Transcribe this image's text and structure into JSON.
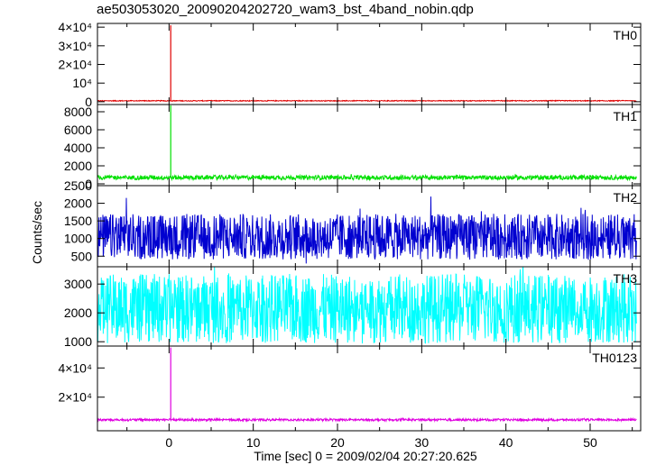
{
  "chart_data": {
    "type": "line",
    "title": "ae503053020_20090204202720_wam3_bst_4band_nobin.qdp",
    "xlabel": "Time [sec] 0 = 2009/02/04 20:27:20.625",
    "ylabel": "Counts/sec",
    "xlim": [
      -8.5,
      56
    ],
    "x_ticks": [
      0,
      10,
      20,
      30,
      40,
      50
    ],
    "x_tick_labels": [
      "0",
      "10",
      "20",
      "30",
      "40",
      "50"
    ],
    "grid": false,
    "series": [
      {
        "name": "TH0",
        "color": "#e00000",
        "ylim": [
          -1500,
          42000
        ],
        "y_ticks": [
          0,
          10000,
          20000,
          30000,
          40000
        ],
        "y_tick_labels": [
          "0",
          "10⁴",
          "2×10⁴",
          "3×10⁴",
          "4×10⁴"
        ],
        "baseline": 500,
        "noise": 450,
        "spike": {
          "x": 0.2,
          "y": 41000
        },
        "x_start": -8.5,
        "x_end": 55.5
      },
      {
        "name": "TH1",
        "color": "#00e000",
        "ylim": [
          -200,
          8800
        ],
        "y_ticks": [
          0,
          2000,
          4000,
          6000,
          8000
        ],
        "y_tick_labels": [
          "0",
          "2000",
          "4000",
          "6000",
          "8000"
        ],
        "baseline": 700,
        "noise": 500,
        "spike": {
          "x": 0.2,
          "y": 8700
        },
        "x_start": -8.5,
        "x_end": 55.5
      },
      {
        "name": "TH2",
        "color": "#0000d0",
        "ylim": [
          200,
          2500
        ],
        "y_ticks": [
          500,
          1000,
          1500,
          2000,
          2500
        ],
        "y_tick_labels": [
          "500",
          "1000",
          "1500",
          "2000",
          "2500"
        ],
        "baseline": 1050,
        "noise": 1300,
        "spike": null,
        "x_start": -8.5,
        "x_end": 55.5
      },
      {
        "name": "TH3",
        "color": "#00ffff",
        "ylim": [
          850,
          3600
        ],
        "y_ticks": [
          1000,
          2000,
          3000
        ],
        "y_tick_labels": [
          "1000",
          "2000",
          "3000"
        ],
        "baseline": 2150,
        "noise": 2400,
        "spike": null,
        "x_start": -8.5,
        "x_end": 55.5
      },
      {
        "name": "TH0123",
        "color": "#e000e0",
        "ylim": [
          -3000,
          55000
        ],
        "y_ticks": [
          20000,
          40000
        ],
        "y_tick_labels": [
          "2×10⁴",
          "4×10⁴"
        ],
        "baseline": 4500,
        "noise": 1500,
        "spike": {
          "x": 0.2,
          "y": 54000
        },
        "x_start": -8.5,
        "x_end": 55.5
      }
    ]
  }
}
